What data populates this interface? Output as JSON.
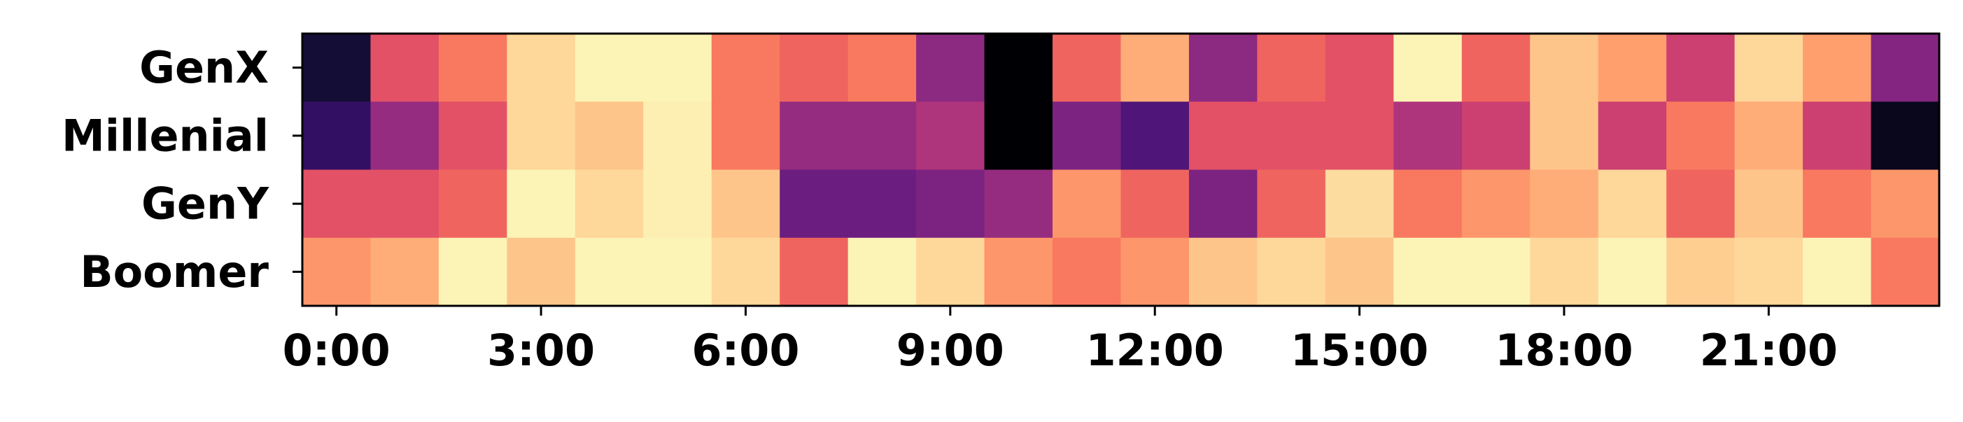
{
  "chart_data": {
    "type": "heatmap",
    "title": "",
    "xlabel": "",
    "ylabel": "",
    "colormap": "magma",
    "value_range": [
      0,
      1
    ],
    "rows": [
      "GenX",
      "Millenial",
      "GenY",
      "Boomer"
    ],
    "columns": [
      "0:00",
      "1:00",
      "2:00",
      "3:00",
      "4:00",
      "5:00",
      "6:00",
      "7:00",
      "8:00",
      "9:00",
      "10:00",
      "11:00",
      "12:00",
      "13:00",
      "14:00",
      "15:00",
      "16:00",
      "17:00",
      "18:00",
      "19:00",
      "20:00",
      "21:00",
      "22:00",
      "23:00"
    ],
    "x_tick_labels": [
      "0:00",
      "3:00",
      "6:00",
      "9:00",
      "12:00",
      "15:00",
      "18:00",
      "21:00"
    ],
    "x_tick_positions": [
      0,
      3,
      6,
      9,
      12,
      15,
      18,
      21
    ],
    "values": [
      [
        0.1,
        0.62,
        0.72,
        0.92,
        0.98,
        0.98,
        0.72,
        0.67,
        0.72,
        0.4,
        0.0,
        0.67,
        0.83,
        0.4,
        0.67,
        0.62,
        0.98,
        0.67,
        0.88,
        0.8,
        0.55,
        0.92,
        0.8,
        0.38
      ],
      [
        0.18,
        0.42,
        0.62,
        0.92,
        0.88,
        0.97,
        0.72,
        0.42,
        0.42,
        0.48,
        0.0,
        0.36,
        0.25,
        0.62,
        0.62,
        0.62,
        0.48,
        0.55,
        0.88,
        0.55,
        0.72,
        0.83,
        0.55,
        0.05
      ],
      [
        0.62,
        0.62,
        0.67,
        0.98,
        0.92,
        0.97,
        0.88,
        0.32,
        0.32,
        0.36,
        0.42,
        0.78,
        0.67,
        0.36,
        0.67,
        0.93,
        0.72,
        0.78,
        0.83,
        0.92,
        0.67,
        0.88,
        0.72,
        0.78
      ],
      [
        0.78,
        0.83,
        0.98,
        0.88,
        0.98,
        0.98,
        0.92,
        0.67,
        0.98,
        0.92,
        0.78,
        0.72,
        0.78,
        0.88,
        0.92,
        0.88,
        0.98,
        0.98,
        0.92,
        0.98,
        0.9,
        0.92,
        0.98,
        0.72
      ]
    ]
  }
}
